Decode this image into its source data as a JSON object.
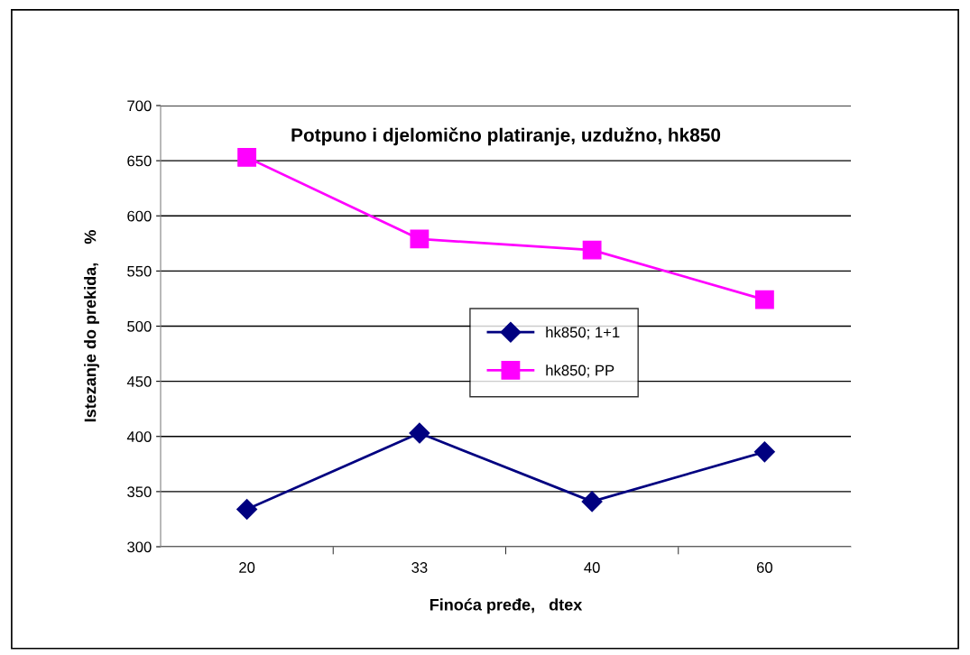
{
  "chart_data": {
    "type": "line",
    "title": "Potpuno i djelomično platiranje, uzdužno, hk850",
    "xlabel": "Finoća pređe,   dtex",
    "ylabel": "Istezanje do prekida,    %",
    "categories": [
      "20",
      "33",
      "40",
      "60"
    ],
    "series": [
      {
        "name": "hk850; 1+1",
        "color": "#000080",
        "marker": "diamond",
        "values": [
          334,
          403,
          341,
          386
        ]
      },
      {
        "name": "hk850; PP",
        "color": "#ff00ff",
        "marker": "square",
        "values": [
          653,
          579,
          569,
          524
        ]
      }
    ],
    "ylim": [
      300,
      700
    ],
    "yticks": [
      300,
      350,
      400,
      450,
      500,
      550,
      600,
      650,
      700
    ],
    "grid": "y",
    "legend": "center",
    "line_style": "solid"
  }
}
